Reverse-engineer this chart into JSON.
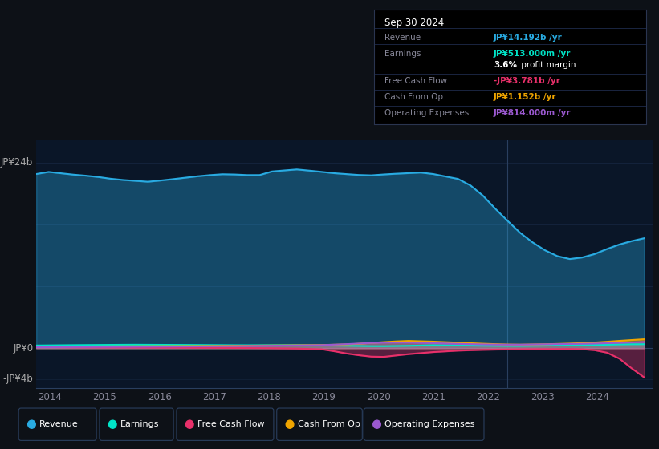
{
  "bg_color": "#0d1117",
  "plot_bg_color": "#0a1628",
  "colors": {
    "revenue": "#29abe2",
    "earnings": "#00e5c8",
    "free_cash_flow": "#e8306a",
    "cash_from_op": "#f0a500",
    "operating_expenses": "#9b59d0"
  },
  "ylabel_top": "JP¥24b",
  "ylabel_bottom": "-JP¥4b",
  "ylabel_zero": "JP¥0",
  "xticks": [
    2014,
    2015,
    2016,
    2017,
    2018,
    2019,
    2020,
    2021,
    2022,
    2023,
    2024
  ],
  "ylim_bottom": -5.2,
  "ylim_top": 27.0,
  "legend_labels": [
    "Revenue",
    "Earnings",
    "Free Cash Flow",
    "Cash From Op",
    "Operating Expenses"
  ]
}
